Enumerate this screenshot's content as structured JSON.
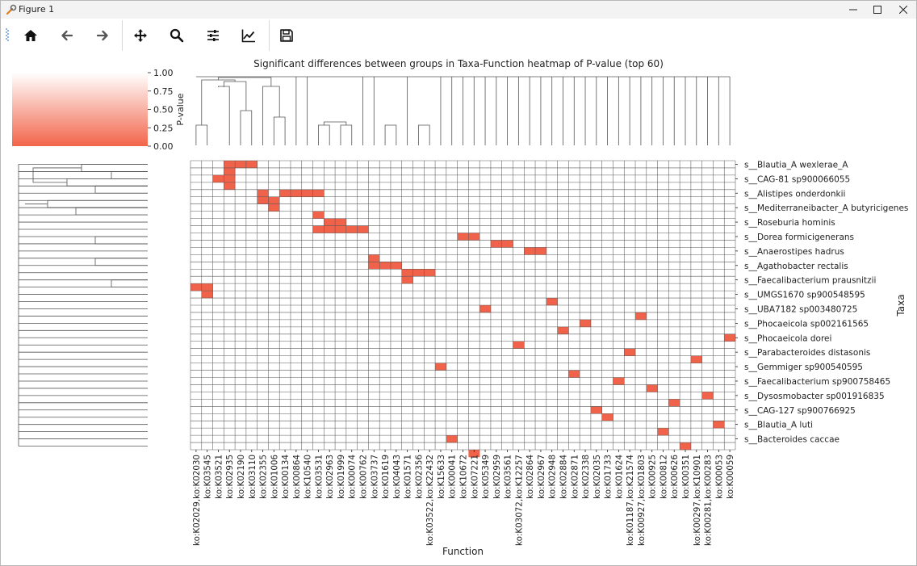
{
  "window": {
    "title": "Figure 1",
    "controls": [
      "minimize",
      "maximize",
      "close"
    ]
  },
  "toolbar": {
    "buttons": [
      {
        "name": "home",
        "icon": "home-icon"
      },
      {
        "name": "back",
        "icon": "arrow-left-icon"
      },
      {
        "name": "forward",
        "icon": "arrow-right-icon"
      },
      {
        "name": "pan",
        "icon": "move-icon"
      },
      {
        "name": "zoom",
        "icon": "magnifier-icon"
      },
      {
        "name": "configure-subplots",
        "icon": "sliders-icon"
      },
      {
        "name": "edit-axis",
        "icon": "line-chart-icon"
      },
      {
        "name": "save",
        "icon": "floppy-disk-icon"
      }
    ]
  },
  "chart_data": {
    "type": "heatmap",
    "title": "Significant differences between groups in Taxa-Function heatmap of P-value (top 60)",
    "xlabel": "Function",
    "ylabel": "Taxa",
    "colorbar": {
      "label": "P-value",
      "ticks": [
        "1.00",
        "0.75",
        "0.50",
        "0.25",
        "0.00"
      ],
      "range": [
        0,
        1
      ],
      "color_low": "#f2654a",
      "color_high": "#ffffff"
    },
    "cell_color": "#f0634a",
    "background_color": "#ffffff",
    "grid_color": "#5a5a5a",
    "n_rows": 40,
    "x_labels": [
      "ko:K02029,ko:K02030",
      "ko:K03545",
      "ko:K03521",
      "ko:K02935",
      "ko:K02190",
      "ko:K03110",
      "ko:K02355",
      "ko:K01006",
      "ko:K00134",
      "ko:K00864",
      "ko:K10540",
      "ko:K03531",
      "ko:K02963",
      "ko:K01999",
      "ko:K00074",
      "ko:K00762",
      "ko:K03737",
      "ko:K01619",
      "ko:K04043",
      "ko:K01571",
      "ko:K02356",
      "ko:K03522,ko:K22432",
      "ko:K15633",
      "ko:K00041",
      "ko:K10672",
      "ko:K07221",
      "ko:K05349",
      "ko:K02959",
      "ko:K03561",
      "ko:K03072,ko:K12257",
      "ko:K02864",
      "ko:K02967",
      "ko:K02948",
      "ko:K02884",
      "ko:K02871",
      "ko:K02338",
      "ko:K02035",
      "ko:K01733",
      "ko:K01624",
      "ko:K01187,ko:K21574",
      "ko:K00927,ko:K01803",
      "ko:K00925",
      "ko:K00812",
      "ko:K00626",
      "ko:K00351",
      "ko:K00297,ko:K10901",
      "ko:K00281,ko:K00283",
      "ko:K00053",
      "ko:K00059"
    ],
    "y_labels": [
      "s__Blautia_A wexlerae_A",
      "s__CAG-81 sp900066055",
      "s__Alistipes onderdonkii",
      "s__Mediterraneibacter_A butyricigenes",
      "s__Roseburia hominis",
      "s__Dorea formicigenerans",
      "s__Anaerostipes hadrus",
      "s__Agathobacter rectalis",
      "s__Faecalibacterium prausnitzii",
      "s__UMGS1670 sp900548595",
      "s__UBA7182 sp003480725",
      "s__Phocaeicola sp002161565",
      "s__Phocaeicola dorei",
      "s__Parabacteroides distasonis",
      "s__Gemmiger sp900540595",
      "s__Faecalibacterium sp900758465",
      "s__Dysosmobacter sp001916835",
      "s__CAG-127 sp900766925",
      "s__Blautia_A luti",
      "s__Bacteroides caccae"
    ],
    "significant_cells": [
      [
        0,
        3
      ],
      [
        0,
        4
      ],
      [
        0,
        5
      ],
      [
        1,
        3
      ],
      [
        2,
        2
      ],
      [
        2,
        3
      ],
      [
        3,
        3
      ],
      [
        4,
        6
      ],
      [
        4,
        8
      ],
      [
        4,
        9
      ],
      [
        4,
        10
      ],
      [
        4,
        11
      ],
      [
        5,
        6
      ],
      [
        5,
        7
      ],
      [
        6,
        7
      ],
      [
        7,
        11
      ],
      [
        8,
        12
      ],
      [
        8,
        13
      ],
      [
        9,
        11
      ],
      [
        9,
        12
      ],
      [
        9,
        13
      ],
      [
        9,
        14
      ],
      [
        9,
        15
      ],
      [
        10,
        24
      ],
      [
        10,
        25
      ],
      [
        11,
        27
      ],
      [
        11,
        28
      ],
      [
        12,
        30
      ],
      [
        12,
        31
      ],
      [
        13,
        16
      ],
      [
        14,
        16
      ],
      [
        14,
        17
      ],
      [
        14,
        18
      ],
      [
        15,
        19
      ],
      [
        15,
        20
      ],
      [
        15,
        21
      ],
      [
        16,
        19
      ],
      [
        17,
        0
      ],
      [
        17,
        1
      ],
      [
        18,
        1
      ],
      [
        19,
        32
      ],
      [
        20,
        26
      ],
      [
        21,
        40
      ],
      [
        22,
        35
      ],
      [
        23,
        33
      ],
      [
        24,
        48
      ],
      [
        25,
        29
      ],
      [
        26,
        39
      ],
      [
        27,
        45
      ],
      [
        28,
        22
      ],
      [
        29,
        34
      ],
      [
        30,
        38
      ],
      [
        31,
        41
      ],
      [
        32,
        46
      ],
      [
        33,
        43
      ],
      [
        34,
        36
      ],
      [
        35,
        37
      ],
      [
        36,
        47
      ],
      [
        37,
        42
      ],
      [
        38,
        23
      ],
      [
        39,
        44
      ],
      [
        40,
        25
      ]
    ]
  }
}
